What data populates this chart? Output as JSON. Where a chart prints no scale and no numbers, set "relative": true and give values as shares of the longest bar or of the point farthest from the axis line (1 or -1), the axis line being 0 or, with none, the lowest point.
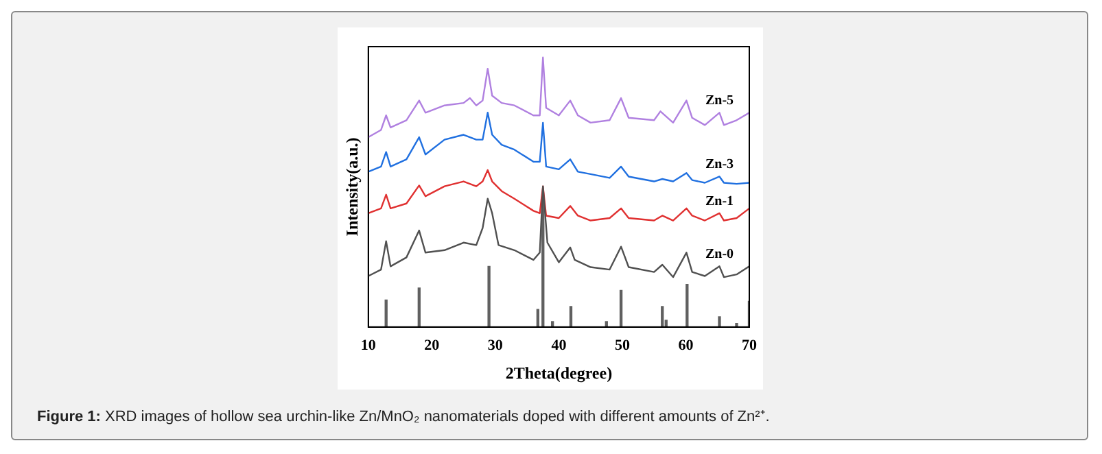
{
  "chart_data": {
    "type": "line",
    "relative": true,
    "xlabel": "2Theta(degree)",
    "ylabel": "Intensity(a.u.)",
    "xlim": [
      10,
      70
    ],
    "xticks": [
      10,
      20,
      30,
      40,
      50,
      60,
      70
    ],
    "grid": false,
    "legend": false,
    "marker": "none",
    "annotations": [
      "Figure 1: XRD images of hollow sea urchin-like Zn/MnO₂ nanomaterials doped with different amounts of Zn²⁺."
    ],
    "series": [
      {
        "type": "bar",
        "color": "#606060",
        "x": [
          12.8,
          18,
          29,
          36.7,
          37.5,
          39,
          41.9,
          47.5,
          49.8,
          56.3,
          56.9,
          60.2,
          65.3,
          68,
          70
        ],
        "values": [
          0.1,
          0.145,
          0.225,
          0.065,
          0.476,
          0.02,
          0.076,
          0.02,
          0.136,
          0.076,
          0.025,
          0.158,
          0.038,
          0.013,
          0.095
        ]
      },
      {
        "name": "Zn-0",
        "color": "#505050",
        "x": [
          10,
          12,
          12.8,
          13.5,
          16,
          18,
          19,
          22,
          25,
          27,
          28,
          28.8,
          29.5,
          30.5,
          33,
          36,
          37,
          37.5,
          38.2,
          40,
          41.8,
          42.5,
          45,
          48,
          49.8,
          51,
          55,
          56.3,
          58,
          60.1,
          61,
          63,
          65.3,
          66,
          68,
          70
        ],
        "values": [
          0.189,
          0.213,
          0.318,
          0.225,
          0.258,
          0.358,
          0.276,
          0.285,
          0.313,
          0.304,
          0.367,
          0.476,
          0.422,
          0.304,
          0.285,
          0.249,
          0.276,
          0.522,
          0.313,
          0.24,
          0.295,
          0.249,
          0.222,
          0.213,
          0.298,
          0.222,
          0.204,
          0.231,
          0.185,
          0.276,
          0.204,
          0.189,
          0.225,
          0.185,
          0.195,
          0.225
        ]
      },
      {
        "name": "Zn-1",
        "color": "#e03030",
        "x": [
          10,
          12,
          12.8,
          13.5,
          16,
          18,
          19,
          22,
          25,
          27,
          28,
          28.8,
          29.5,
          31,
          33,
          36,
          37,
          37.5,
          38,
          40,
          41.8,
          43,
          45,
          48,
          49.8,
          51,
          55,
          56.3,
          58,
          60.1,
          61,
          63,
          65.3,
          66,
          68,
          70
        ],
        "values": [
          0.422,
          0.44,
          0.491,
          0.44,
          0.458,
          0.525,
          0.485,
          0.522,
          0.54,
          0.522,
          0.54,
          0.582,
          0.54,
          0.504,
          0.476,
          0.431,
          0.422,
          0.522,
          0.413,
          0.404,
          0.449,
          0.413,
          0.395,
          0.404,
          0.44,
          0.404,
          0.395,
          0.413,
          0.395,
          0.44,
          0.413,
          0.395,
          0.422,
          0.395,
          0.404,
          0.44
        ]
      },
      {
        "name": "Zn-3",
        "color": "#2070e0",
        "x": [
          10,
          12,
          12.8,
          13.5,
          16,
          18,
          19,
          22,
          25,
          27,
          28,
          28.8,
          29.5,
          31,
          33,
          36,
          37,
          37.5,
          38,
          40,
          41.8,
          43,
          45,
          48,
          49.8,
          51,
          55,
          56.3,
          58,
          60.1,
          61,
          63,
          65.3,
          66,
          68,
          70
        ],
        "values": [
          0.576,
          0.595,
          0.649,
          0.595,
          0.622,
          0.704,
          0.64,
          0.695,
          0.713,
          0.695,
          0.695,
          0.795,
          0.713,
          0.676,
          0.658,
          0.613,
          0.613,
          0.758,
          0.595,
          0.585,
          0.622,
          0.576,
          0.567,
          0.553,
          0.595,
          0.558,
          0.54,
          0.549,
          0.54,
          0.571,
          0.545,
          0.535,
          0.558,
          0.535,
          0.531,
          0.535
        ]
      },
      {
        "name": "Zn-5",
        "color": "#b080e0",
        "x": [
          10,
          12,
          12.8,
          13.5,
          16,
          18,
          19,
          22,
          25,
          26,
          27,
          28,
          28.8,
          29.5,
          31,
          33,
          36,
          37,
          37.5,
          38,
          40,
          41.8,
          43,
          45,
          48,
          49.8,
          51,
          55,
          56,
          58,
          60.1,
          61,
          63,
          65.3,
          66,
          68,
          70
        ],
        "values": [
          0.704,
          0.731,
          0.785,
          0.74,
          0.767,
          0.84,
          0.795,
          0.822,
          0.831,
          0.849,
          0.822,
          0.84,
          0.958,
          0.858,
          0.831,
          0.822,
          0.785,
          0.785,
          1,
          0.813,
          0.785,
          0.84,
          0.785,
          0.758,
          0.767,
          0.849,
          0.776,
          0.767,
          0.8,
          0.758,
          0.84,
          0.776,
          0.749,
          0.795,
          0.749,
          0.767,
          0.795
        ]
      }
    ]
  }
}
